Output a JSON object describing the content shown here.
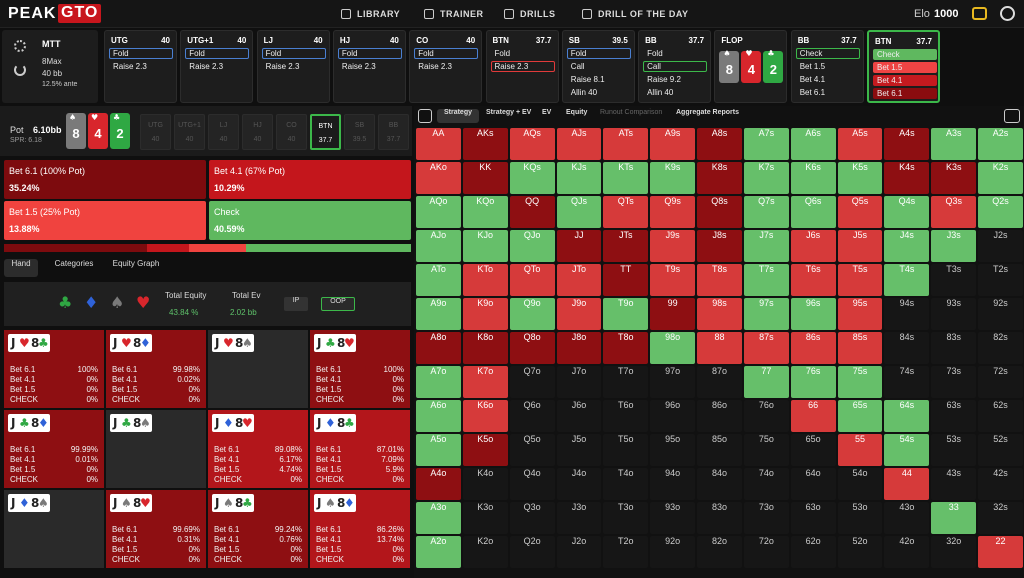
{
  "header": {
    "logo_a": "PEAK",
    "logo_b": "GTO",
    "nav": [
      "LIBRARY",
      "TRAINER",
      "DRILLS",
      "DRILL OF THE DAY"
    ],
    "elo_label": "Elo",
    "elo": "1000"
  },
  "game": {
    "format": "MTT",
    "table": "8Max",
    "stack": "40 bb",
    "ante": "12.5% ante"
  },
  "suit_colors": {
    "♠": "#7a7a7a",
    "♥": "#d8262c",
    "♦": "#2f62d8",
    "♣": "#2fa843"
  },
  "actions": [
    {
      "pos": "UTG",
      "stack": "40",
      "options": [
        "Fold",
        "Raise 2.3"
      ],
      "highlight": 0,
      "hl": "#4a7fd1"
    },
    {
      "pos": "UTG+1",
      "stack": "40",
      "options": [
        "Fold",
        "Raise 2.3"
      ],
      "highlight": 0,
      "hl": "#4a7fd1"
    },
    {
      "pos": "LJ",
      "stack": "40",
      "options": [
        "Fold",
        "Raise 2.3"
      ],
      "highlight": 0,
      "hl": "#4a7fd1"
    },
    {
      "pos": "HJ",
      "stack": "40",
      "options": [
        "Fold",
        "Raise 2.3"
      ],
      "highlight": 0,
      "hl": "#4a7fd1"
    },
    {
      "pos": "CO",
      "stack": "40",
      "options": [
        "Fold",
        "Raise 2.3"
      ],
      "highlight": 0,
      "hl": "#4a7fd1"
    },
    {
      "pos": "BTN",
      "stack": "37.7",
      "options": [
        "Fold",
        "Raise 2.3"
      ],
      "highlight": 1,
      "hl": "#e03a3a"
    },
    {
      "pos": "SB",
      "stack": "39.5",
      "options": [
        "Fold",
        "Call",
        "Raise 8.1",
        "Allin 40"
      ],
      "highlight": 0,
      "hl": "#4a7fd1"
    },
    {
      "pos": "BB",
      "stack": "37.7",
      "options": [
        "Fold",
        "Call",
        "Raise 9.2",
        "Allin 40"
      ],
      "highlight": 1,
      "hl": "#3cb84a"
    },
    {
      "pos": "FLOP",
      "cards": [
        {
          "rank": "8",
          "suit": "♠"
        },
        {
          "rank": "4",
          "suit": "♥"
        },
        {
          "rank": "2",
          "suit": "♣"
        }
      ]
    },
    {
      "pos": "BB",
      "stack": "37.7",
      "options": [
        "Check",
        "Bet 1.5",
        "Bet 4.1",
        "Bet 6.1"
      ],
      "highlight": 0,
      "hl": "#3cb84a"
    },
    {
      "pos": "BTN",
      "stack": "37.7",
      "options": [
        "Check",
        "Bet 1.5",
        "Bet 4.1",
        "Bet 6.1"
      ],
      "fills": [
        "#5fb85f",
        "#ef4444",
        "#c51a1f",
        "#8a0c0f"
      ],
      "active": true
    }
  ],
  "pot": {
    "label": "Pot",
    "value": "6.10bb",
    "spr": "SPR: 6.18",
    "active": 5,
    "players": [
      {
        "pos": "UTG",
        "stack": "40"
      },
      {
        "pos": "UTG+1",
        "stack": "40"
      },
      {
        "pos": "LJ",
        "stack": "40"
      },
      {
        "pos": "HJ",
        "stack": "40"
      },
      {
        "pos": "CO",
        "stack": "40"
      },
      {
        "pos": "BTN",
        "stack": "37.7"
      },
      {
        "pos": "SB",
        "stack": "39.5"
      },
      {
        "pos": "BB",
        "stack": "37.7"
      }
    ]
  },
  "strategy": {
    "labels": [
      "Bet 6.1 (100% Pot)",
      "Bet 4.1 (67% Pot)",
      "Bet 1.5 (25% Pot)",
      "Check"
    ],
    "values": [
      35.24,
      10.29,
      13.88,
      40.59
    ],
    "value_labels": [
      "35.24%",
      "10.29%",
      "13.88%",
      "40.59%"
    ],
    "colors": [
      "#7d0b0e",
      "#c4161c",
      "#f0433f",
      "#5fb85f"
    ]
  },
  "tabs": [
    "Hand",
    "Categories",
    "Equity Graph"
  ],
  "equity": {
    "suits": [
      "♣",
      "♦",
      "♠",
      "♥"
    ],
    "total_equity_label": "Total Equity",
    "total_equity": "43.84 %",
    "total_ev_label": "Total Ev",
    "total_ev": "2.02 bb",
    "ip": "IP",
    "oop": "OOP"
  },
  "hand_actions": [
    "Bet 6.1",
    "Bet 4.1",
    "Bet 1.5",
    "CHECK"
  ],
  "hands": [
    {
      "c1": "J",
      "s1": "♥",
      "c2": "8",
      "s2": "♣",
      "freqs": [
        "100%",
        "0%",
        "0%",
        "0%"
      ],
      "bg": "#8e0f12"
    },
    {
      "c1": "J",
      "s1": "♥",
      "c2": "8",
      "s2": "♦",
      "freqs": [
        "99.98%",
        "0.02%",
        "0%",
        "0%"
      ],
      "bg": "#8e0f12"
    },
    {
      "c1": "J",
      "s1": "♥",
      "c2": "8",
      "s2": "♠",
      "bg": "#2a2a2a"
    },
    {
      "c1": "J",
      "s1": "♣",
      "c2": "8",
      "s2": "♥",
      "freqs": [
        "100%",
        "0%",
        "0%",
        "0%"
      ],
      "bg": "#8e0f12"
    },
    {
      "c1": "J",
      "s1": "♣",
      "c2": "8",
      "s2": "♦",
      "freqs": [
        "99.99%",
        "0.01%",
        "0%",
        "0%"
      ],
      "bg": "#8e0f12"
    },
    {
      "c1": "J",
      "s1": "♣",
      "c2": "8",
      "s2": "♠",
      "bg": "#2a2a2a"
    },
    {
      "c1": "J",
      "s1": "♦",
      "c2": "8",
      "s2": "♥",
      "freqs": [
        "89.08%",
        "6.17%",
        "4.74%",
        "0%"
      ],
      "bg": "#b3161b"
    },
    {
      "c1": "J",
      "s1": "♦",
      "c2": "8",
      "s2": "♣",
      "freqs": [
        "87.01%",
        "7.09%",
        "5.9%",
        "0%"
      ],
      "bg": "#b3161b"
    },
    {
      "c1": "J",
      "s1": "♦",
      "c2": "8",
      "s2": "♠",
      "bg": "#2a2a2a"
    },
    {
      "c1": "J",
      "s1": "♠",
      "c2": "8",
      "s2": "♥",
      "freqs": [
        "99.69%",
        "0.31%",
        "0%",
        "0%"
      ],
      "bg": "#8e0f12"
    },
    {
      "c1": "J",
      "s1": "♠",
      "c2": "8",
      "s2": "♣",
      "freqs": [
        "99.24%",
        "0.76%",
        "0%",
        "0%"
      ],
      "bg": "#8e0f12"
    },
    {
      "c1": "J",
      "s1": "♠",
      "c2": "8",
      "s2": "♦",
      "freqs": [
        "86.26%",
        "13.74%",
        "0%",
        "0%"
      ],
      "bg": "#b3161b"
    }
  ],
  "range": {
    "tabs": [
      "Strategy",
      "Strategy + EV",
      "EV",
      "Equity",
      "Runout Comparison",
      "Aggregate Reports"
    ],
    "palette": {
      "D": "#8e0f12",
      "R": "#d63a3a",
      "G": "#66bf6a",
      "X": "#161616"
    },
    "labels": [
      [
        "AA",
        "AKs",
        "AQs",
        "AJs",
        "ATs",
        "A9s",
        "A8s",
        "A7s",
        "A6s",
        "A5s",
        "A4s",
        "A3s",
        "A2s"
      ],
      [
        "AKo",
        "KK",
        "KQs",
        "KJs",
        "KTs",
        "K9s",
        "K8s",
        "K7s",
        "K6s",
        "K5s",
        "K4s",
        "K3s",
        "K2s"
      ],
      [
        "AQo",
        "KQo",
        "QQ",
        "QJs",
        "QTs",
        "Q9s",
        "Q8s",
        "Q7s",
        "Q6s",
        "Q5s",
        "Q4s",
        "Q3s",
        "Q2s"
      ],
      [
        "AJo",
        "KJo",
        "QJo",
        "JJ",
        "JTs",
        "J9s",
        "J8s",
        "J7s",
        "J6s",
        "J5s",
        "J4s",
        "J3s",
        "J2s"
      ],
      [
        "ATo",
        "KTo",
        "QTo",
        "JTo",
        "TT",
        "T9s",
        "T8s",
        "T7s",
        "T6s",
        "T5s",
        "T4s",
        "T3s",
        "T2s"
      ],
      [
        "A9o",
        "K9o",
        "Q9o",
        "J9o",
        "T9o",
        "99",
        "98s",
        "97s",
        "96s",
        "95s",
        "94s",
        "93s",
        "92s"
      ],
      [
        "A8o",
        "K8o",
        "Q8o",
        "J8o",
        "T8o",
        "98o",
        "88",
        "87s",
        "86s",
        "85s",
        "84s",
        "83s",
        "82s"
      ],
      [
        "A7o",
        "K7o",
        "Q7o",
        "J7o",
        "T7o",
        "97o",
        "87o",
        "77",
        "76s",
        "75s",
        "74s",
        "73s",
        "72s"
      ],
      [
        "A6o",
        "K6o",
        "Q6o",
        "J6o",
        "T6o",
        "96o",
        "86o",
        "76o",
        "66",
        "65s",
        "64s",
        "63s",
        "62s"
      ],
      [
        "A5o",
        "K5o",
        "Q5o",
        "J5o",
        "T5o",
        "95o",
        "85o",
        "75o",
        "65o",
        "55",
        "54s",
        "53s",
        "52s"
      ],
      [
        "A4o",
        "K4o",
        "Q4o",
        "J4o",
        "T4o",
        "94o",
        "84o",
        "74o",
        "64o",
        "54o",
        "44",
        "43s",
        "42s"
      ],
      [
        "A3o",
        "K3o",
        "Q3o",
        "J3o",
        "T3o",
        "93o",
        "83o",
        "73o",
        "63o",
        "53o",
        "43o",
        "33",
        "32s"
      ],
      [
        "A2o",
        "K2o",
        "Q2o",
        "J2o",
        "T2o",
        "92o",
        "82o",
        "72o",
        "62o",
        "52o",
        "42o",
        "32o",
        "22"
      ]
    ],
    "fills": [
      "RDRRRRDGGRDGG",
      "RDGGGGDGGGDDG",
      "GGDGRRDGGRGRG",
      "GGGDDRDGRRGGX",
      "GRRRDRRGRRGXX",
      "GRGRGDRGGRXXX",
      "DDDDDGRRRRXXX",
      "GRXXXXXGGGXXX",
      "GRXXXXXXRGGXX",
      "GDXXXXXXXRGXX",
      "DXXXXXXXXXRXX",
      "GXXXXXXXXXXGX",
      "GXXXXXXXXXXXR"
    ]
  }
}
